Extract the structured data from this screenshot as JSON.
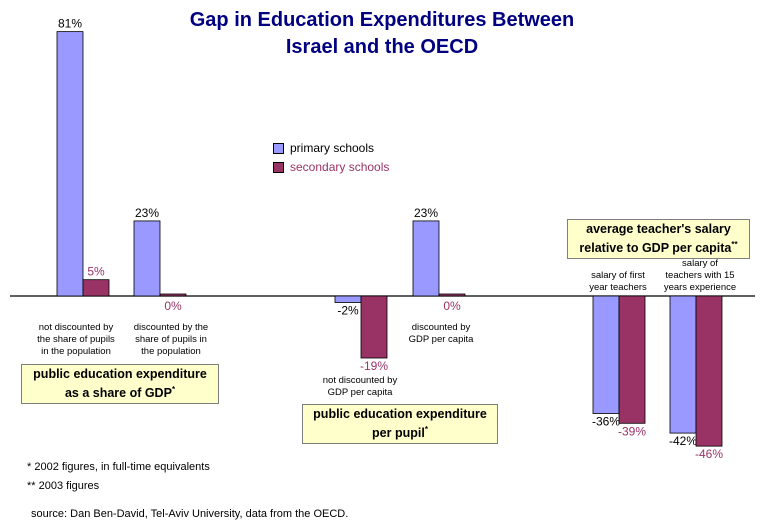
{
  "title": {
    "line1": "Gap in Education Expenditures Between",
    "line2": "Israel and the OECD"
  },
  "colors": {
    "primary": "#9999ff",
    "secondary": "#993366",
    "title": "#000080"
  },
  "legend": {
    "primary": "primary schools",
    "secondary": "secondary schools"
  },
  "chart_data": {
    "type": "bar",
    "ylim": [
      -50,
      85
    ],
    "grid": false,
    "legend_position": "top-center",
    "series": [
      {
        "name": "primary schools",
        "values": [
          81,
          23,
          -2,
          23,
          -36,
          -42
        ],
        "labels": [
          "81%",
          "23%",
          "-2%",
          "23%",
          "-36%",
          "-42%"
        ]
      },
      {
        "name": "secondary schools",
        "values": [
          5,
          0,
          -19,
          0,
          -39,
          -46
        ],
        "labels": [
          "5%",
          "0%",
          "-19%",
          "0%",
          "-39%",
          "-46%"
        ]
      }
    ],
    "categories": [
      "not discounted by the share of pupils in the population",
      "discounted by the share of pupils in the population",
      "not discounted by GDP per capita",
      "discounted by GDP per capita",
      "salary of first year teachers",
      "salary of teachers with 15 years experience"
    ]
  },
  "captions": {
    "c1": [
      "not discounted by",
      "the share of pupils",
      "in the population"
    ],
    "c2": [
      "discounted by the",
      "share of pupils in",
      "the population"
    ],
    "c3": [
      "not discounted by",
      "GDP per capita"
    ],
    "c4": [
      "discounted by",
      "GDP per capita"
    ],
    "c5": [
      "salary of first",
      "year teachers"
    ],
    "c6": [
      "salary of",
      "teachers with 15",
      "years experience"
    ]
  },
  "group_boxes": {
    "g1": {
      "line1": "public education expenditure",
      "line2": "as a share of GDP",
      "mark": "*"
    },
    "g2": {
      "line1": "public education expenditure",
      "line2": "per pupil",
      "mark": "*"
    },
    "g3": {
      "line1": "average teacher's salary",
      "line2": "relative to GDP per capita",
      "mark": "**"
    }
  },
  "footnotes": {
    "f1": "*  2002 figures, in full-time equivalents",
    "f2": "** 2003 figures",
    "source": "source: Dan Ben-David, Tel-Aviv University, data from the OECD."
  }
}
